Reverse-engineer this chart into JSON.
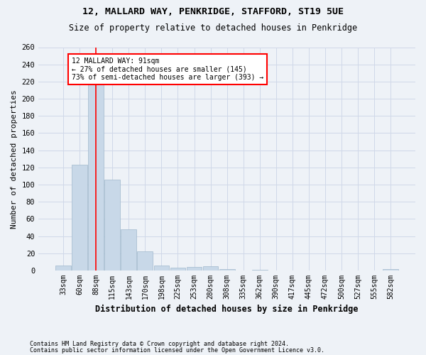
{
  "title1": "12, MALLARD WAY, PENKRIDGE, STAFFORD, ST19 5UE",
  "title2": "Size of property relative to detached houses in Penkridge",
  "xlabel": "Distribution of detached houses by size in Penkridge",
  "ylabel": "Number of detached properties",
  "footnote1": "Contains HM Land Registry data © Crown copyright and database right 2024.",
  "footnote2": "Contains public sector information licensed under the Open Government Licence v3.0.",
  "bar_labels": [
    "33sqm",
    "60sqm",
    "88sqm",
    "115sqm",
    "143sqm",
    "170sqm",
    "198sqm",
    "225sqm",
    "253sqm",
    "280sqm",
    "308sqm",
    "335sqm",
    "362sqm",
    "390sqm",
    "417sqm",
    "445sqm",
    "472sqm",
    "500sqm",
    "527sqm",
    "555sqm",
    "582sqm"
  ],
  "bar_values": [
    6,
    123,
    217,
    106,
    48,
    22,
    6,
    3,
    4,
    5,
    2,
    0,
    1,
    0,
    0,
    0,
    0,
    0,
    0,
    0,
    2
  ],
  "bar_color": "#c8d8e8",
  "bar_edge_color": "#a0b8cc",
  "grid_color": "#d0d8e8",
  "property_line_x": 2.0,
  "annotation_text": "12 MALLARD WAY: 91sqm\n← 27% of detached houses are smaller (145)\n73% of semi-detached houses are larger (393) →",
  "annotation_box_color": "white",
  "annotation_box_edge": "red",
  "property_line_color": "red",
  "ylim": [
    0,
    260
  ],
  "yticks": [
    0,
    20,
    40,
    60,
    80,
    100,
    120,
    140,
    160,
    180,
    200,
    220,
    240,
    260
  ],
  "background_color": "#eef2f7"
}
